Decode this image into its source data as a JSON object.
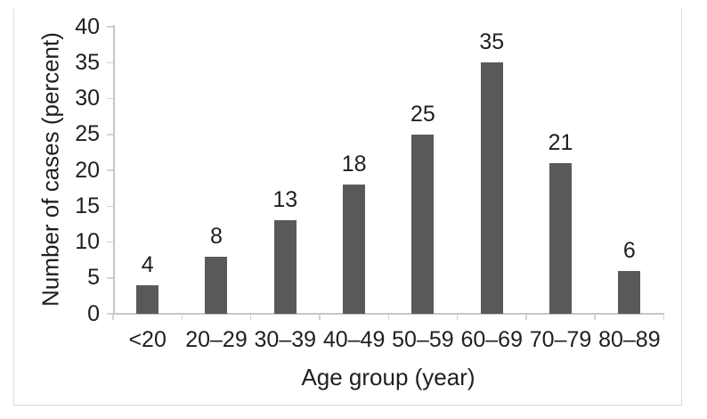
{
  "chart_data": {
    "type": "bar",
    "title": "",
    "categories": [
      "<20",
      "20–29",
      "30–39",
      "40–49",
      "50–59",
      "60–69",
      "70–79",
      "80–89"
    ],
    "values": [
      4,
      8,
      13,
      18,
      25,
      35,
      21,
      6
    ],
    "data_labels": [
      "4",
      "8",
      "13",
      "18",
      "25",
      "35",
      "21",
      "6"
    ],
    "xlabel": "Age group (year)",
    "ylabel": "Number of cases (percent)",
    "ylim": [
      0,
      40
    ],
    "yticks": [
      0,
      5,
      10,
      15,
      20,
      25,
      30,
      35,
      40
    ],
    "grid": false,
    "legend_position": "none",
    "bar_color": "#595959",
    "axis_line_color": "#c6c6c6",
    "tick_mark_color": "#d2d2d2",
    "frame_border_color": "#d9d9d9",
    "text_color": "#1f1f1f",
    "background_color": "#ffffff"
  }
}
